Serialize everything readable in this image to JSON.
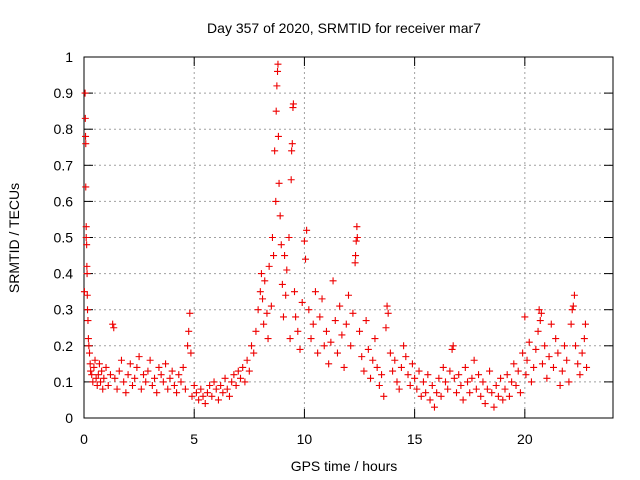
{
  "chart_data": {
    "type": "scatter",
    "title": "Day 357 of 2020, SRMTID for receiver mar7",
    "xlabel": "GPS time / hours",
    "ylabel": "SRMTID / TECUs",
    "xlim": [
      0,
      24
    ],
    "ylim": [
      0,
      1
    ],
    "x_ticks": [
      "0",
      "5",
      "10",
      "15",
      "20"
    ],
    "x_tick_values": [
      0,
      5,
      10,
      15,
      20
    ],
    "y_ticks": [
      "0",
      "0.1",
      "0.2",
      "0.3",
      "0.4",
      "0.5",
      "0.6",
      "0.7",
      "0.8",
      "0.9",
      "1"
    ],
    "y_tick_values": [
      0,
      0.1,
      0.2,
      0.3,
      0.4,
      0.5,
      0.6,
      0.7,
      0.8,
      0.9,
      1
    ],
    "grid": true,
    "marker": "+",
    "color": "#ee0000",
    "series": [
      {
        "name": "SRMTID",
        "points": [
          [
            0.02,
            0.35
          ],
          [
            0.05,
            0.9
          ],
          [
            0.06,
            0.83
          ],
          [
            0.07,
            0.78
          ],
          [
            0.08,
            0.76
          ],
          [
            0.08,
            0.64
          ],
          [
            0.1,
            0.53
          ],
          [
            0.1,
            0.5
          ],
          [
            0.12,
            0.48
          ],
          [
            0.13,
            0.42
          ],
          [
            0.14,
            0.4
          ],
          [
            0.15,
            0.34
          ],
          [
            0.16,
            0.3
          ],
          [
            0.18,
            0.27
          ],
          [
            0.2,
            0.22
          ],
          [
            0.22,
            0.2
          ],
          [
            0.25,
            0.18
          ],
          [
            0.28,
            0.15
          ],
          [
            0.3,
            0.13
          ],
          [
            0.35,
            0.12
          ],
          [
            0.4,
            0.1
          ],
          [
            0.45,
            0.14
          ],
          [
            0.5,
            0.16
          ],
          [
            0.55,
            0.11
          ],
          [
            0.6,
            0.09
          ],
          [
            0.65,
            0.12
          ],
          [
            0.7,
            0.15
          ],
          [
            0.75,
            0.1
          ],
          [
            0.8,
            0.13
          ],
          [
            0.85,
            0.08
          ],
          [
            0.9,
            0.11
          ],
          [
            1.0,
            0.14
          ],
          [
            1.1,
            0.09
          ],
          [
            1.2,
            0.12
          ],
          [
            1.3,
            0.26
          ],
          [
            1.35,
            0.25
          ],
          [
            1.4,
            0.11
          ],
          [
            1.5,
            0.08
          ],
          [
            1.6,
            0.13
          ],
          [
            1.7,
            0.16
          ],
          [
            1.8,
            0.1
          ],
          [
            1.9,
            0.07
          ],
          [
            2.0,
            0.12
          ],
          [
            2.1,
            0.15
          ],
          [
            2.2,
            0.09
          ],
          [
            2.3,
            0.11
          ],
          [
            2.4,
            0.14
          ],
          [
            2.5,
            0.17
          ],
          [
            2.6,
            0.08
          ],
          [
            2.7,
            0.12
          ],
          [
            2.8,
            0.1
          ],
          [
            2.9,
            0.13
          ],
          [
            3.0,
            0.16
          ],
          [
            3.1,
            0.09
          ],
          [
            3.2,
            0.11
          ],
          [
            3.3,
            0.07
          ],
          [
            3.4,
            0.14
          ],
          [
            3.5,
            0.12
          ],
          [
            3.6,
            0.1
          ],
          [
            3.7,
            0.15
          ],
          [
            3.8,
            0.08
          ],
          [
            3.9,
            0.11
          ],
          [
            4.0,
            0.13
          ],
          [
            4.1,
            0.09
          ],
          [
            4.2,
            0.07
          ],
          [
            4.3,
            0.12
          ],
          [
            4.4,
            0.1
          ],
          [
            4.5,
            0.14
          ],
          [
            4.6,
            0.08
          ],
          [
            4.7,
            0.2
          ],
          [
            4.75,
            0.24
          ],
          [
            4.8,
            0.29
          ],
          [
            4.85,
            0.18
          ],
          [
            4.9,
            0.06
          ],
          [
            5.0,
            0.09
          ],
          [
            5.1,
            0.07
          ],
          [
            5.2,
            0.05
          ],
          [
            5.3,
            0.08
          ],
          [
            5.4,
            0.06
          ],
          [
            5.5,
            0.04
          ],
          [
            5.6,
            0.07
          ],
          [
            5.7,
            0.09
          ],
          [
            5.8,
            0.06
          ],
          [
            5.9,
            0.1
          ],
          [
            6.0,
            0.08
          ],
          [
            6.1,
            0.05
          ],
          [
            6.2,
            0.09
          ],
          [
            6.3,
            0.07
          ],
          [
            6.4,
            0.11
          ],
          [
            6.5,
            0.08
          ],
          [
            6.6,
            0.06
          ],
          [
            6.7,
            0.1
          ],
          [
            6.8,
            0.12
          ],
          [
            6.9,
            0.09
          ],
          [
            7.0,
            0.13
          ],
          [
            7.1,
            0.11
          ],
          [
            7.2,
            0.14
          ],
          [
            7.3,
            0.1
          ],
          [
            7.4,
            0.16
          ],
          [
            7.5,
            0.13
          ],
          [
            7.6,
            0.2
          ],
          [
            7.7,
            0.18
          ],
          [
            7.8,
            0.24
          ],
          [
            7.9,
            0.3
          ],
          [
            8.0,
            0.35
          ],
          [
            8.05,
            0.4
          ],
          [
            8.1,
            0.33
          ],
          [
            8.15,
            0.26
          ],
          [
            8.2,
            0.38
          ],
          [
            8.3,
            0.29
          ],
          [
            8.35,
            0.22
          ],
          [
            8.4,
            0.42
          ],
          [
            8.5,
            0.31
          ],
          [
            8.55,
            0.5
          ],
          [
            8.6,
            0.45
          ],
          [
            8.65,
            0.74
          ],
          [
            8.7,
            0.6
          ],
          [
            8.72,
            0.85
          ],
          [
            8.75,
            0.92
          ],
          [
            8.78,
            0.96
          ],
          [
            8.8,
            0.98
          ],
          [
            8.82,
            0.78
          ],
          [
            8.85,
            0.65
          ],
          [
            8.9,
            0.56
          ],
          [
            8.95,
            0.48
          ],
          [
            9.0,
            0.37
          ],
          [
            9.05,
            0.28
          ],
          [
            9.1,
            0.45
          ],
          [
            9.15,
            0.34
          ],
          [
            9.2,
            0.41
          ],
          [
            9.3,
            0.5
          ],
          [
            9.35,
            0.22
          ],
          [
            9.4,
            0.66
          ],
          [
            9.42,
            0.74
          ],
          [
            9.45,
            0.76
          ],
          [
            9.48,
            0.86
          ],
          [
            9.5,
            0.87
          ],
          [
            9.55,
            0.35
          ],
          [
            9.6,
            0.28
          ],
          [
            9.7,
            0.24
          ],
          [
            9.8,
            0.19
          ],
          [
            9.9,
            0.32
          ],
          [
            10.0,
            0.49
          ],
          [
            10.05,
            0.44
          ],
          [
            10.1,
            0.52
          ],
          [
            10.2,
            0.3
          ],
          [
            10.3,
            0.22
          ],
          [
            10.4,
            0.26
          ],
          [
            10.5,
            0.35
          ],
          [
            10.6,
            0.18
          ],
          [
            10.7,
            0.28
          ],
          [
            10.8,
            0.33
          ],
          [
            10.9,
            0.2
          ],
          [
            11.0,
            0.24
          ],
          [
            11.1,
            0.15
          ],
          [
            11.2,
            0.21
          ],
          [
            11.3,
            0.38
          ],
          [
            11.4,
            0.27
          ],
          [
            11.5,
            0.18
          ],
          [
            11.6,
            0.31
          ],
          [
            11.7,
            0.23
          ],
          [
            11.8,
            0.14
          ],
          [
            11.9,
            0.26
          ],
          [
            12.0,
            0.34
          ],
          [
            12.1,
            0.2
          ],
          [
            12.2,
            0.29
          ],
          [
            12.3,
            0.43
          ],
          [
            12.32,
            0.45
          ],
          [
            12.35,
            0.49
          ],
          [
            12.38,
            0.53
          ],
          [
            12.4,
            0.5
          ],
          [
            12.5,
            0.24
          ],
          [
            12.6,
            0.17
          ],
          [
            12.7,
            0.13
          ],
          [
            12.8,
            0.27
          ],
          [
            12.9,
            0.19
          ],
          [
            13.0,
            0.11
          ],
          [
            13.1,
            0.16
          ],
          [
            13.2,
            0.22
          ],
          [
            13.3,
            0.14
          ],
          [
            13.4,
            0.09
          ],
          [
            13.5,
            0.12
          ],
          [
            13.6,
            0.06
          ],
          [
            13.7,
            0.25
          ],
          [
            13.75,
            0.31
          ],
          [
            13.8,
            0.29
          ],
          [
            13.9,
            0.18
          ],
          [
            14.0,
            0.13
          ],
          [
            14.1,
            0.16
          ],
          [
            14.2,
            0.1
          ],
          [
            14.3,
            0.08
          ],
          [
            14.4,
            0.14
          ],
          [
            14.5,
            0.2
          ],
          [
            14.6,
            0.17
          ],
          [
            14.7,
            0.12
          ],
          [
            14.8,
            0.09
          ],
          [
            14.9,
            0.15
          ],
          [
            15.0,
            0.11
          ],
          [
            15.1,
            0.08
          ],
          [
            15.2,
            0.13
          ],
          [
            15.3,
            0.06
          ],
          [
            15.4,
            0.1
          ],
          [
            15.5,
            0.07
          ],
          [
            15.6,
            0.12
          ],
          [
            15.7,
            0.05
          ],
          [
            15.8,
            0.09
          ],
          [
            15.9,
            0.03
          ],
          [
            16.0,
            0.07
          ],
          [
            16.1,
            0.11
          ],
          [
            16.2,
            0.06
          ],
          [
            16.3,
            0.14
          ],
          [
            16.4,
            0.1
          ],
          [
            16.5,
            0.08
          ],
          [
            16.6,
            0.13
          ],
          [
            16.7,
            0.19
          ],
          [
            16.75,
            0.2
          ],
          [
            16.8,
            0.11
          ],
          [
            16.9,
            0.07
          ],
          [
            17.0,
            0.12
          ],
          [
            17.1,
            0.09
          ],
          [
            17.2,
            0.05
          ],
          [
            17.3,
            0.14
          ],
          [
            17.4,
            0.1
          ],
          [
            17.5,
            0.07
          ],
          [
            17.6,
            0.11
          ],
          [
            17.7,
            0.16
          ],
          [
            17.8,
            0.08
          ],
          [
            17.9,
            0.12
          ],
          [
            18.0,
            0.06
          ],
          [
            18.1,
            0.1
          ],
          [
            18.2,
            0.04
          ],
          [
            18.3,
            0.08
          ],
          [
            18.4,
            0.13
          ],
          [
            18.5,
            0.07
          ],
          [
            18.6,
            0.03
          ],
          [
            18.7,
            0.09
          ],
          [
            18.8,
            0.06
          ],
          [
            18.9,
            0.11
          ],
          [
            19.0,
            0.05
          ],
          [
            19.1,
            0.08
          ],
          [
            19.2,
            0.12
          ],
          [
            19.3,
            0.06
          ],
          [
            19.4,
            0.1
          ],
          [
            19.5,
            0.15
          ],
          [
            19.6,
            0.09
          ],
          [
            19.7,
            0.13
          ],
          [
            19.8,
            0.07
          ],
          [
            19.9,
            0.18
          ],
          [
            20.0,
            0.28
          ],
          [
            20.05,
            0.12
          ],
          [
            20.1,
            0.16
          ],
          [
            20.2,
            0.21
          ],
          [
            20.3,
            0.1
          ],
          [
            20.4,
            0.14
          ],
          [
            20.5,
            0.19
          ],
          [
            20.6,
            0.24
          ],
          [
            20.65,
            0.3
          ],
          [
            20.7,
            0.27
          ],
          [
            20.75,
            0.29
          ],
          [
            20.8,
            0.15
          ],
          [
            20.9,
            0.2
          ],
          [
            21.0,
            0.11
          ],
          [
            21.1,
            0.17
          ],
          [
            21.2,
            0.26
          ],
          [
            21.3,
            0.14
          ],
          [
            21.4,
            0.22
          ],
          [
            21.5,
            0.18
          ],
          [
            21.6,
            0.09
          ],
          [
            21.7,
            0.13
          ],
          [
            21.8,
            0.2
          ],
          [
            21.9,
            0.16
          ],
          [
            22.0,
            0.1
          ],
          [
            22.1,
            0.26
          ],
          [
            22.15,
            0.3
          ],
          [
            22.2,
            0.31
          ],
          [
            22.25,
            0.34
          ],
          [
            22.3,
            0.2
          ],
          [
            22.4,
            0.15
          ],
          [
            22.5,
            0.12
          ],
          [
            22.6,
            0.18
          ],
          [
            22.7,
            0.22
          ],
          [
            22.75,
            0.26
          ],
          [
            22.8,
            0.14
          ]
        ]
      }
    ]
  }
}
